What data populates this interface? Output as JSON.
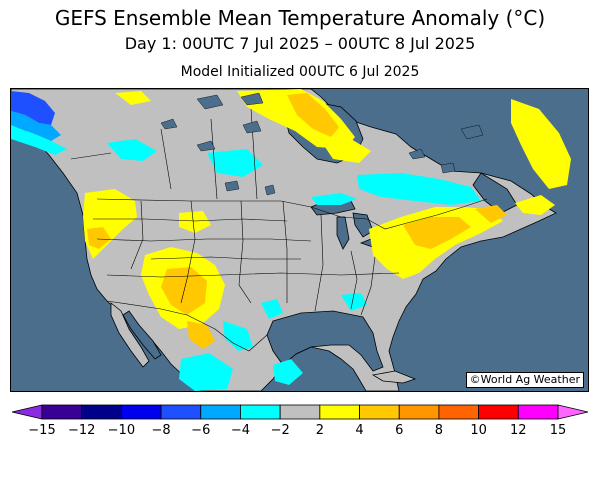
{
  "header": {
    "title": "GEFS Ensemble Mean Temperature Anomaly (°C)",
    "subtitle": "Day 1: 00UTC 7 Jul 2025 – 00UTC 8 Jul 2025",
    "model_init": "Model Initialized 00UTC 6 Jul 2025"
  },
  "map": {
    "copyright": "©World Ag Weather",
    "colors": {
      "ocean": "#4a6e8c",
      "land_neutral": "#c0c0c0",
      "lakes": "#4a6e8c",
      "borders": "#000000"
    },
    "regions": [
      {
        "name": "Cold anomaly – Alaska Panhandle / British Columbia coast",
        "range": "-8 to -4"
      },
      {
        "name": "Cool anomaly – Hudson Bay / Quebec",
        "range": "-4 to -2"
      },
      {
        "name": "Warm anomaly – Northwest Territories / Nunavut",
        "range": "2 to 6"
      },
      {
        "name": "Warm anomaly – Pacific Northwest / Great Basin",
        "range": "2 to 6"
      },
      {
        "name": "Warm anomaly – Desert Southwest / northern Mexico",
        "range": "2 to 6"
      },
      {
        "name": "Warm anomaly – Northeast US / Atlantic Canada",
        "range": "2 to 6"
      },
      {
        "name": "Warm anomaly – Labrador / Newfoundland",
        "range": "2 to 6"
      },
      {
        "name": "Cool anomaly – Mexico interior / Central America",
        "range": "-4 to -2"
      }
    ]
  },
  "colorbar": {
    "bins": [
      {
        "color": "#8a2be2"
      },
      {
        "color": "#3a0096"
      },
      {
        "color": "#00008b"
      },
      {
        "color": "#0000ee"
      },
      {
        "color": "#1e50ff"
      },
      {
        "color": "#00a8ff"
      },
      {
        "color": "#00ffff"
      },
      {
        "color": "#c0c0c0"
      },
      {
        "color": "#ffff00"
      },
      {
        "color": "#ffc800"
      },
      {
        "color": "#ff9600"
      },
      {
        "color": "#ff6400"
      },
      {
        "color": "#ff0000"
      },
      {
        "color": "#ff00ff"
      },
      {
        "color": "#ff66ff"
      }
    ],
    "tick_labels": [
      "−15",
      "−12",
      "−10",
      "−8",
      "−6",
      "−4",
      "−2",
      "2",
      "4",
      "6",
      "8",
      "10",
      "12",
      "15"
    ]
  }
}
